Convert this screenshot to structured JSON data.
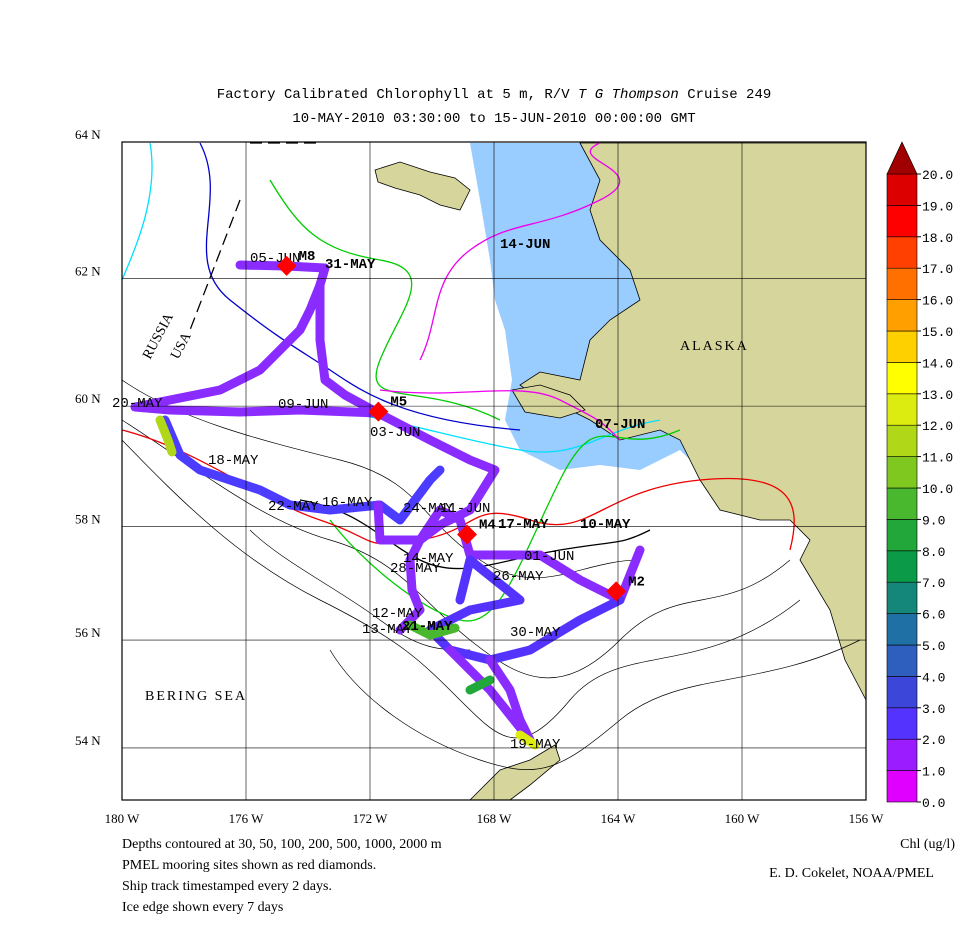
{
  "title": {
    "prefix": "Factory Calibrated Chlorophyll at 5 m, R/V ",
    "italic": "T G  Thompson",
    "suffix": " Cruise 249"
  },
  "subtitle": "10-MAY-2010 03:30:00 to 15-JUN-2010 00:00:00 GMT",
  "map": {
    "xlim": [
      -180,
      -156
    ],
    "ylim": [
      53,
      64
    ],
    "lat_ticks": [
      {
        "value": 64,
        "label": "64 N"
      },
      {
        "value": 62,
        "label": "62 N"
      },
      {
        "value": 60,
        "label": "60 N"
      },
      {
        "value": 58,
        "label": "58 N"
      },
      {
        "value": 56,
        "label": "56 N"
      },
      {
        "value": 54,
        "label": "54 N"
      }
    ],
    "lon_ticks": [
      {
        "value": -180,
        "label": "180 W"
      },
      {
        "value": -176,
        "label": "176 W"
      },
      {
        "value": -172,
        "label": "172 W"
      },
      {
        "value": -168,
        "label": "168 W"
      },
      {
        "value": -164,
        "label": "164 W"
      },
      {
        "value": -160,
        "label": "160 W"
      },
      {
        "value": -156,
        "label": "156 W"
      }
    ],
    "regions": [
      "ALASKA",
      "BERING SEA",
      "RUSSIA",
      "USA"
    ],
    "moorings": [
      {
        "label": "M8",
        "lat": 62.19,
        "lon": -174.69
      },
      {
        "label": "M5",
        "lat": 59.91,
        "lon": -171.73
      },
      {
        "label": "M4",
        "lat": 57.86,
        "lon": -168.87
      },
      {
        "label": "M2",
        "lat": 56.87,
        "lon": -164.06
      }
    ],
    "mooring_color": "#ff0000",
    "date_labels": [
      "05-JUN",
      "31-MAY",
      "14-JUN",
      "09-JUN",
      "03-JUN",
      "07-JUN",
      "20-MAY",
      "18-MAY",
      "22-MAY",
      "16-MAY",
      "24-MAY",
      "11-JUN",
      "17-MAY",
      "10-MAY",
      "01-JUN",
      "14-MAY",
      "28-MAY",
      "26-MAY",
      "12-MAY",
      "13-MAY",
      "21-MAY",
      "30-MAY",
      "19-MAY"
    ]
  },
  "colorbar": {
    "label": "Chl (ug/l)",
    "ticks": [
      {
        "value": 20,
        "label": "20.0"
      },
      {
        "value": 19,
        "label": "19.0"
      },
      {
        "value": 18,
        "label": "18.0"
      },
      {
        "value": 17,
        "label": "17.0"
      },
      {
        "value": 16,
        "label": "16.0"
      },
      {
        "value": 15,
        "label": "15.0"
      },
      {
        "value": 14,
        "label": "14.0"
      },
      {
        "value": 13,
        "label": "13.0"
      },
      {
        "value": 12,
        "label": "12.0"
      },
      {
        "value": 11,
        "label": "11.0"
      },
      {
        "value": 10,
        "label": "10.0"
      },
      {
        "value": 9,
        "label": "9.0"
      },
      {
        "value": 8,
        "label": "8.0"
      },
      {
        "value": 7,
        "label": "7.0"
      },
      {
        "value": 6,
        "label": "6.0"
      },
      {
        "value": 5,
        "label": "5.0"
      },
      {
        "value": 4,
        "label": "4.0"
      },
      {
        "value": 3,
        "label": "3.0"
      },
      {
        "value": 2,
        "label": "2.0"
      },
      {
        "value": 1,
        "label": "1.0"
      },
      {
        "value": 0,
        "label": "0.0"
      }
    ],
    "colors": [
      "#e000ff",
      "#9a1cff",
      "#5533ff",
      "#3c46d8",
      "#2e5fbf",
      "#1f70a5",
      "#15877a",
      "#0a9a48",
      "#22a83a",
      "#4ab82e",
      "#7ec820",
      "#b0d818",
      "#ddec10",
      "#ffff00",
      "#ffd000",
      "#ffa000",
      "#ff7000",
      "#ff4000",
      "#ff0000",
      "#dd0000",
      "#a00000"
    ]
  },
  "notes": [
    "Depths contoured at 30, 50, 100, 200, 500, 1000, 2000 m",
    "PMEL mooring sites shown as red diamonds.",
    "Ship track timestamped every 2 days.",
    "Ice edge shown every 7 days"
  ],
  "credit": "E. D. Cokelet, NOAA/PMEL"
}
